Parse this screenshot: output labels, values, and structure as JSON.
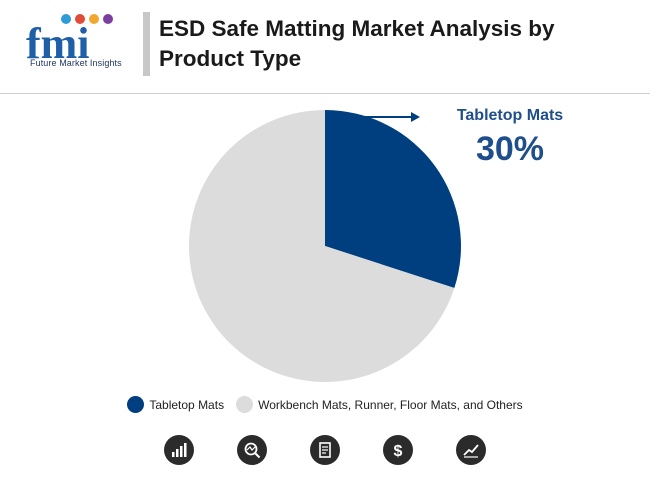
{
  "header": {
    "logo_text": "Future Market Insights",
    "title": "ESD Safe Matting Market Analysis by Product Type"
  },
  "chart_data": {
    "type": "pie",
    "title": "ESD Safe Matting Market Analysis by Product Type",
    "slices": [
      {
        "label": "Tabletop Mats",
        "value": 30,
        "color": "#003f7f"
      },
      {
        "label": "Workbench Mats, Runner, Floor Mats, and Others",
        "value": 70,
        "color": "#dcdcdc"
      }
    ],
    "callout": {
      "label": "Tabletop Mats",
      "value": "30%"
    }
  },
  "icons": [
    "bar-chart-icon",
    "search-chart-icon",
    "report-icon",
    "dollar-icon",
    "line-chart-icon"
  ]
}
